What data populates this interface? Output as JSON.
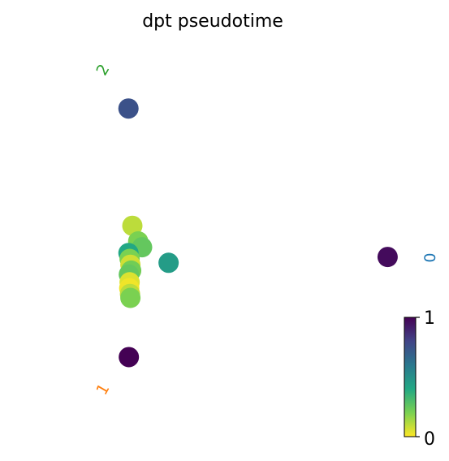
{
  "chart_data": {
    "type": "scatter",
    "title": "dpt pseudotime",
    "xlabel": "",
    "ylabel": "",
    "grid": false,
    "axes_visible": false,
    "xlim": [
      0,
      100
    ],
    "ylim": [
      0,
      100
    ],
    "colormap": "viridis_r",
    "colormap_stops": [
      "#fde725",
      "#7ad151",
      "#22a884",
      "#2a788e",
      "#414487",
      "#440154"
    ],
    "colorbar": {
      "min": 0,
      "max": 1,
      "tick_labels": [
        "0",
        "1"
      ],
      "placement": "right-bottom"
    },
    "points": [
      {
        "x": 21.5,
        "y": 83.6,
        "value": 0.75
      },
      {
        "x": 22.5,
        "y": 53.5,
        "value": 0.1
      },
      {
        "x": 24.0,
        "y": 49.5,
        "value": 0.2
      },
      {
        "x": 25.0,
        "y": 48.0,
        "value": 0.25
      },
      {
        "x": 21.5,
        "y": 46.5,
        "value": 0.4
      },
      {
        "x": 21.8,
        "y": 45.0,
        "value": 0.2
      },
      {
        "x": 22.0,
        "y": 43.5,
        "value": 0.07
      },
      {
        "x": 22.2,
        "y": 42.0,
        "value": 0.22
      },
      {
        "x": 21.6,
        "y": 41.0,
        "value": 0.25
      },
      {
        "x": 21.8,
        "y": 39.0,
        "value": 0.05
      },
      {
        "x": 21.7,
        "y": 37.5,
        "value": 0.02
      },
      {
        "x": 21.9,
        "y": 36.0,
        "value": 0.1
      },
      {
        "x": 22.0,
        "y": 35.0,
        "value": 0.2
      },
      {
        "x": 31.8,
        "y": 44.0,
        "value": 0.45
      },
      {
        "x": 88.0,
        "y": 45.5,
        "value": 0.97
      },
      {
        "x": 21.6,
        "y": 19.8,
        "value": 1.0
      }
    ],
    "cluster_labels": [
      {
        "text": "2",
        "x": 15.0,
        "y": 93.5,
        "color": "#2ca02c",
        "rotation": -60
      },
      {
        "text": "0",
        "x": 99.0,
        "y": 45.3,
        "color": "#1f77b4",
        "rotation": -90
      },
      {
        "text": "1",
        "x": 15.0,
        "y": 11.5,
        "color": "#ff7f0e",
        "rotation": -60
      }
    ]
  }
}
